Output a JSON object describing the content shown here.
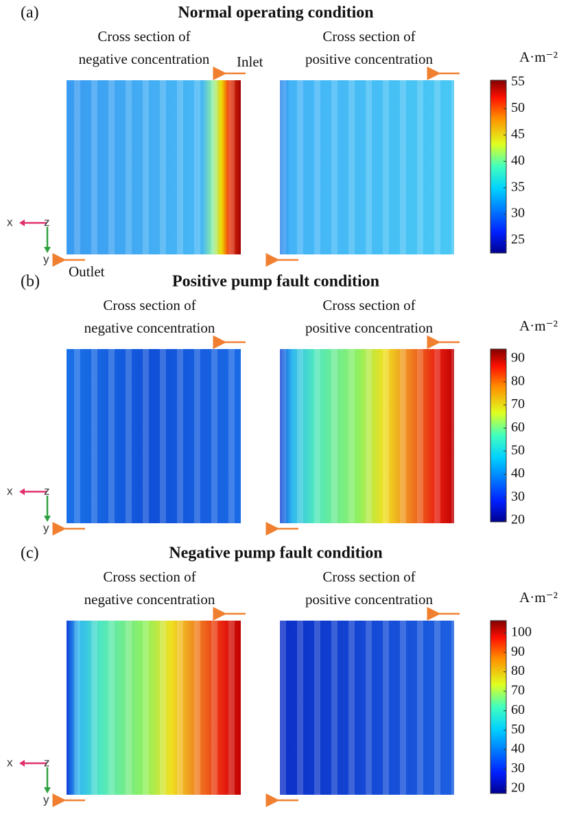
{
  "panels": [
    {
      "label": "(a)",
      "title": "Normal operating condition",
      "left_caption": [
        "Cross section of",
        "negative concentration"
      ],
      "right_caption": [
        "Cross section of",
        "positive concentration"
      ],
      "inlet_label": "Inlet",
      "outlet_label": "Outlet",
      "axes": {
        "x": "x",
        "z": "z",
        "y": "y"
      },
      "colorbar": {
        "unit": "A·m⁻²",
        "lim": [
          22.6,
          55.4
        ],
        "ticks": [
          25,
          30,
          35,
          40,
          45,
          50,
          55
        ]
      }
    },
    {
      "label": "(b)",
      "title": "Positive pump fault condition",
      "left_caption": [
        "Cross section of",
        "negative concentration"
      ],
      "right_caption": [
        "Cross section of",
        "positive concentration"
      ],
      "axes": {
        "x": "x",
        "z": "z",
        "y": "y"
      },
      "colorbar": {
        "unit": "A·m⁻²",
        "lim": [
          19.4,
          94.2
        ],
        "ticks": [
          20,
          30,
          40,
          50,
          60,
          70,
          80,
          90
        ]
      }
    },
    {
      "label": "(c)",
      "title": "Negative pump fault condition",
      "left_caption": [
        "Cross section of",
        "negative concentration"
      ],
      "right_caption": [
        "Cross section of",
        "positive concentration"
      ],
      "axes": {
        "x": "x",
        "z": "z",
        "y": "y"
      },
      "colorbar": {
        "unit": "A·m⁻²",
        "lim": [
          17.5,
          106.3
        ],
        "ticks": [
          20,
          30,
          40,
          50,
          60,
          70,
          80,
          90,
          100
        ]
      }
    }
  ]
}
